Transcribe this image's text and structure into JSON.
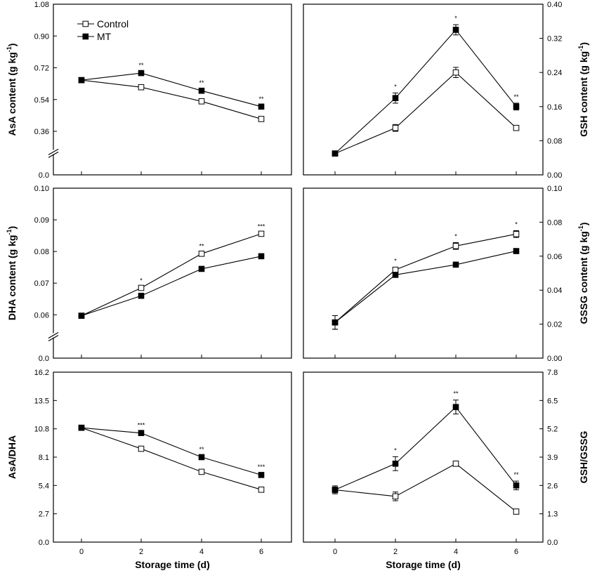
{
  "chart_data": [
    {
      "id": "asa",
      "type": "line",
      "ylabel": "AsA content (g kg",
      "ylabel_sup": "-1",
      "ylabel_end": ")",
      "yaxis_side": "left",
      "ylim": [
        0.0,
        1.08
      ],
      "yticks": [
        "0.0",
        "0.36",
        "0.54",
        "0.72",
        "0.90",
        "1.08"
      ],
      "axis_break": true,
      "x": [
        0,
        2,
        4,
        6
      ],
      "xticks": [],
      "xlabel": "",
      "series": [
        {
          "name": "Control",
          "marker": "open-square",
          "values": [
            0.65,
            0.61,
            0.53,
            0.43
          ],
          "errors": [
            0.008,
            0.008,
            0.008,
            0.008
          ]
        },
        {
          "name": "MT",
          "marker": "filled-square",
          "values": [
            0.65,
            0.69,
            0.59,
            0.5
          ],
          "errors": [
            0.008,
            0.008,
            0.008,
            0.008
          ]
        }
      ],
      "annotations": [
        {
          "x": 2,
          "text": "**"
        },
        {
          "x": 4,
          "text": "**"
        },
        {
          "x": 6,
          "text": "**"
        }
      ],
      "legend": {
        "position": "top-left",
        "entries": [
          "Control",
          "MT"
        ]
      }
    },
    {
      "id": "gsh",
      "type": "line",
      "ylabel": "GSH content (g kg",
      "ylabel_sup": "-1",
      "ylabel_end": ")",
      "yaxis_side": "right",
      "ylim": [
        0.0,
        0.4
      ],
      "yticks": [
        "0.00",
        "0.08",
        "0.16",
        "0.24",
        "0.32",
        "0.40"
      ],
      "axis_break": false,
      "x": [
        0,
        2,
        4,
        6
      ],
      "xticks": [],
      "xlabel": "",
      "series": [
        {
          "name": "Control",
          "marker": "open-square",
          "values": [
            0.05,
            0.11,
            0.24,
            0.11
          ],
          "errors": [
            0.004,
            0.008,
            0.012,
            0.003
          ]
        },
        {
          "name": "MT",
          "marker": "filled-square",
          "values": [
            0.05,
            0.18,
            0.34,
            0.16
          ],
          "errors": [
            0.004,
            0.012,
            0.012,
            0.008
          ]
        }
      ],
      "annotations": [
        {
          "x": 2,
          "text": "*"
        },
        {
          "x": 4,
          "text": "*"
        },
        {
          "x": 6,
          "text": "**"
        }
      ]
    },
    {
      "id": "dha",
      "type": "line",
      "ylabel": "DHA content (g kg",
      "ylabel_sup": "-1",
      "ylabel_end": ")",
      "yaxis_side": "left",
      "ylim": [
        0.0,
        0.1
      ],
      "yticks": [
        "0.0",
        "0.06",
        "0.07",
        "0.08",
        "0.09",
        "0.10"
      ],
      "axis_break": true,
      "x": [
        0,
        2,
        4,
        6
      ],
      "xticks": [],
      "xlabel": "",
      "series": [
        {
          "name": "Control",
          "marker": "open-square",
          "values": [
            0.0597,
            0.0685,
            0.0793,
            0.0856
          ],
          "errors": [
            0.0002,
            0.0003,
            0.0004,
            0.0003
          ]
        },
        {
          "name": "MT",
          "marker": "filled-square",
          "values": [
            0.0597,
            0.066,
            0.0745,
            0.0785
          ],
          "errors": [
            0.0002,
            0.0003,
            0.0003,
            0.0003
          ]
        }
      ],
      "annotations": [
        {
          "x": 2,
          "text": "*"
        },
        {
          "x": 4,
          "text": "**"
        },
        {
          "x": 6,
          "text": "***"
        }
      ]
    },
    {
      "id": "gssg",
      "type": "line",
      "ylabel": "GSSG content (g kg",
      "ylabel_sup": "-1",
      "ylabel_end": ")",
      "yaxis_side": "right",
      "ylim": [
        0.0,
        0.1
      ],
      "yticks": [
        "0.00",
        "0.02",
        "0.04",
        "0.06",
        "0.08",
        "0.10"
      ],
      "axis_break": false,
      "x": [
        0,
        2,
        4,
        6
      ],
      "xticks": [],
      "xlabel": "",
      "series": [
        {
          "name": "Control",
          "marker": "open-square",
          "values": [
            0.021,
            0.052,
            0.066,
            0.073
          ],
          "errors": [
            0.004,
            0.0015,
            0.002,
            0.002
          ]
        },
        {
          "name": "MT",
          "marker": "filled-square",
          "values": [
            0.021,
            0.049,
            0.055,
            0.063
          ],
          "errors": [
            0.004,
            0.001,
            0.001,
            0.001
          ]
        }
      ],
      "annotations": [
        {
          "x": 2,
          "text": "*"
        },
        {
          "x": 4,
          "text": "*"
        },
        {
          "x": 6,
          "text": "*"
        }
      ]
    },
    {
      "id": "asa-dha",
      "type": "line",
      "ylabel": "AsA/DHA",
      "ylabel_sup": "",
      "ylabel_end": "",
      "yaxis_side": "left",
      "ylim": [
        0.0,
        16.2
      ],
      "yticks": [
        "0.0",
        "2.7",
        "5.4",
        "8.1",
        "10.8",
        "13.5",
        "16.2"
      ],
      "axis_break": false,
      "x": [
        0,
        2,
        4,
        6
      ],
      "xticks": [
        "0",
        "2",
        "4",
        "6"
      ],
      "xlabel": "Storage time (d)",
      "series": [
        {
          "name": "Control",
          "marker": "open-square",
          "values": [
            10.9,
            8.9,
            6.7,
            5.0
          ],
          "errors": [
            0.15,
            0.15,
            0.15,
            0.15
          ]
        },
        {
          "name": "MT",
          "marker": "filled-square",
          "values": [
            10.9,
            10.4,
            8.1,
            6.4
          ],
          "errors": [
            0.15,
            0.15,
            0.15,
            0.15
          ]
        }
      ],
      "annotations": [
        {
          "x": 2,
          "text": "***"
        },
        {
          "x": 4,
          "text": "**"
        },
        {
          "x": 6,
          "text": "***"
        }
      ]
    },
    {
      "id": "gsh-gssg",
      "type": "line",
      "ylabel": "GSH/GSSG",
      "ylabel_sup": "",
      "ylabel_end": "",
      "yaxis_side": "right",
      "ylim": [
        0.0,
        7.8
      ],
      "yticks": [
        "0.0",
        "1.3",
        "2.6",
        "3.9",
        "5.2",
        "6.5",
        "7.8"
      ],
      "axis_break": false,
      "x": [
        0,
        2,
        4,
        6
      ],
      "xticks": [
        "0",
        "2",
        "4",
        "6"
      ],
      "xlabel": "Storage time (d)",
      "series": [
        {
          "name": "Control",
          "marker": "open-square",
          "values": [
            2.4,
            2.1,
            3.6,
            1.4
          ],
          "errors": [
            0.18,
            0.2,
            0.12,
            0.07
          ]
        },
        {
          "name": "MT",
          "marker": "filled-square",
          "values": [
            2.4,
            3.6,
            6.2,
            2.6
          ],
          "errors": [
            0.18,
            0.32,
            0.32,
            0.2
          ]
        }
      ],
      "annotations": [
        {
          "x": 2,
          "text": "*"
        },
        {
          "x": 4,
          "text": "**"
        },
        {
          "x": 6,
          "text": "**"
        }
      ]
    }
  ]
}
